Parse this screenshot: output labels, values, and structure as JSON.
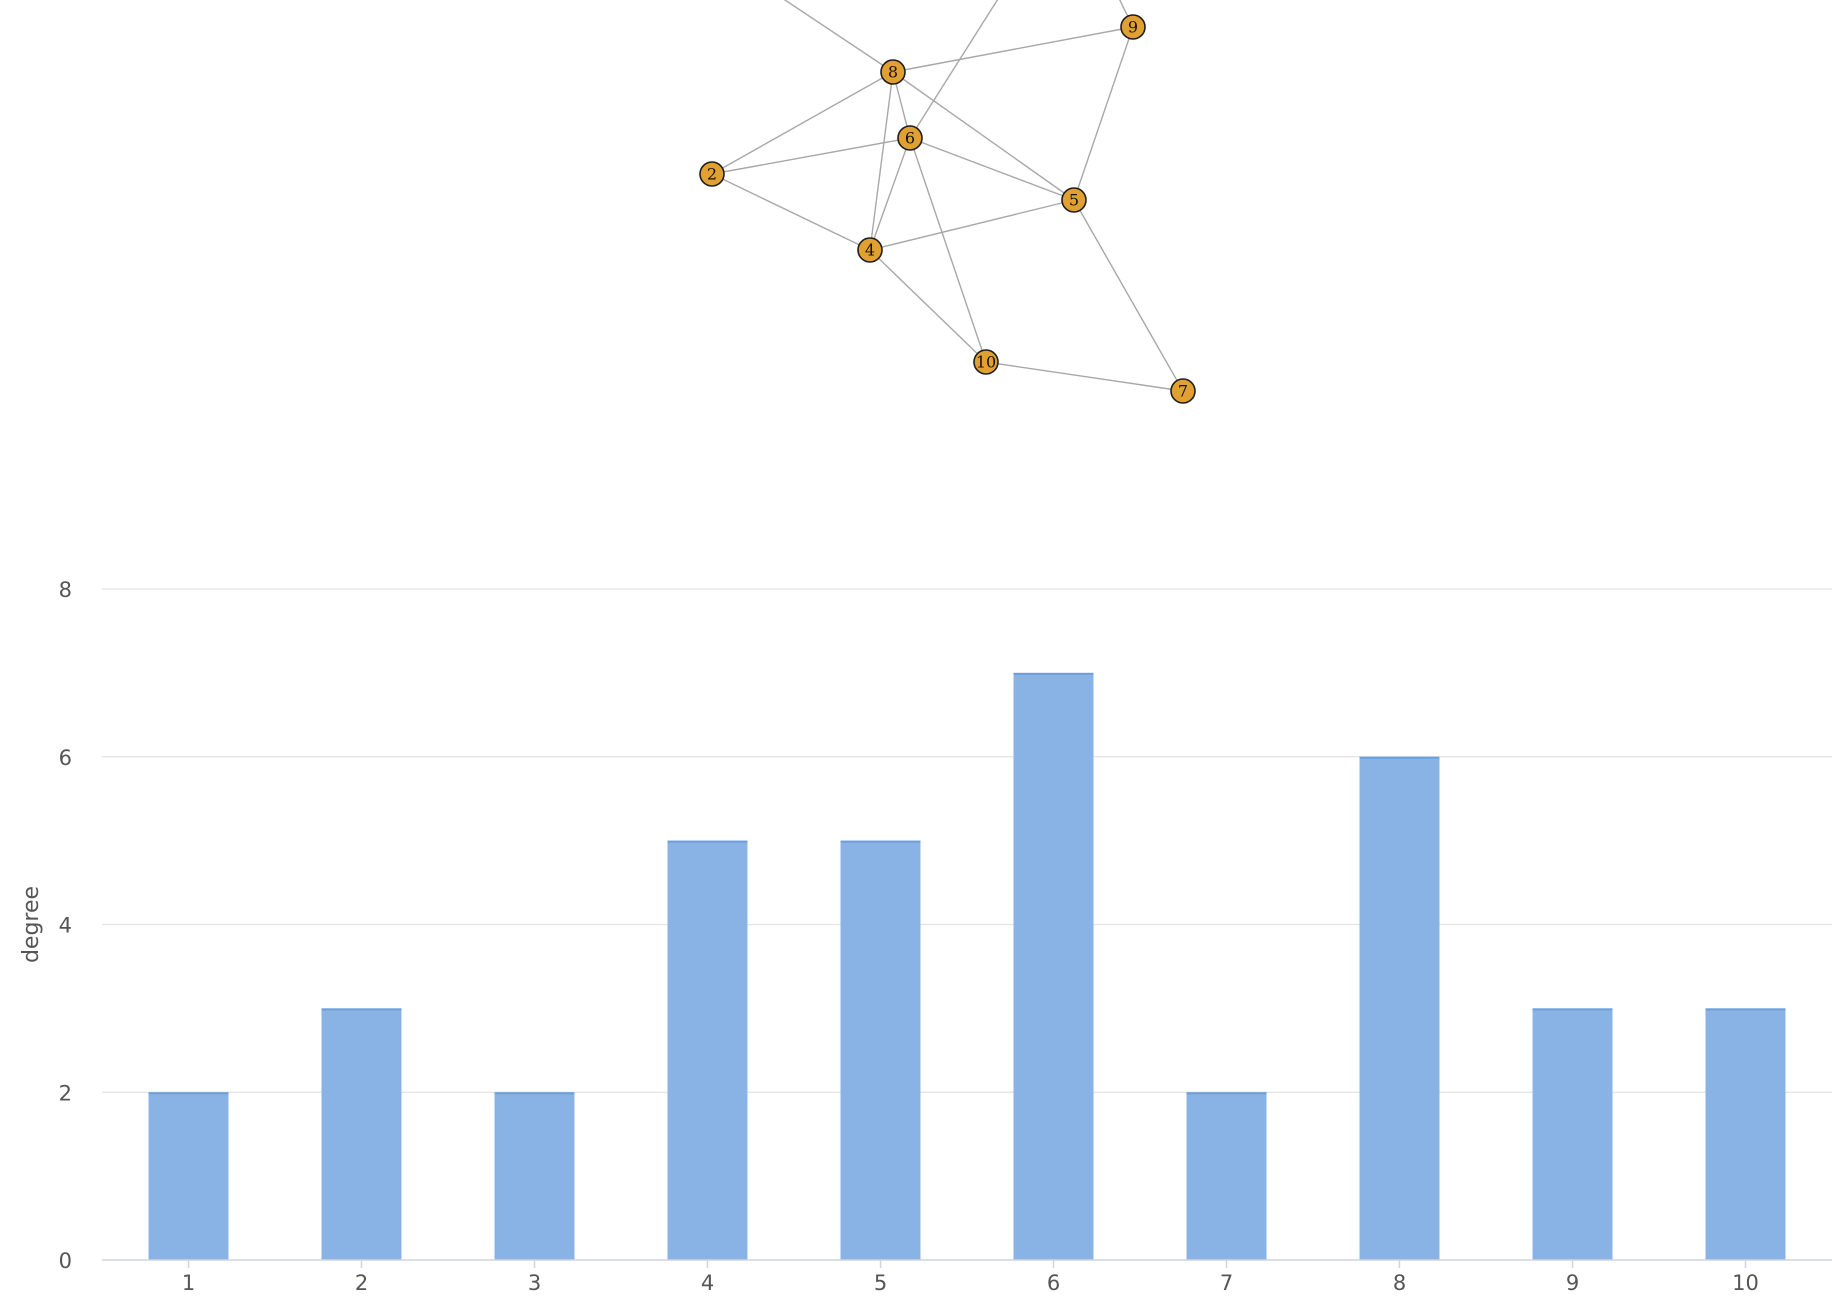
{
  "graph": {
    "nodes": [
      {
        "id": "2",
        "label": "2"
      },
      {
        "id": "4",
        "label": "4"
      },
      {
        "id": "5",
        "label": "5"
      },
      {
        "id": "6",
        "label": "6"
      },
      {
        "id": "7",
        "label": "7"
      },
      {
        "id": "8",
        "label": "8"
      },
      {
        "id": "9",
        "label": "9"
      },
      {
        "id": "10",
        "label": "10"
      }
    ],
    "edges": [
      [
        "8",
        "6"
      ],
      [
        "8",
        "9"
      ],
      [
        "8",
        "2"
      ],
      [
        "8",
        "4"
      ],
      [
        "8",
        "5"
      ],
      [
        "6",
        "2"
      ],
      [
        "6",
        "4"
      ],
      [
        "6",
        "5"
      ],
      [
        "6",
        "10"
      ],
      [
        "2",
        "4"
      ],
      [
        "4",
        "5"
      ],
      [
        "4",
        "10"
      ],
      [
        "9",
        "5"
      ],
      [
        "5",
        "7"
      ],
      [
        "10",
        "7"
      ]
    ],
    "node_color": "#e1a032",
    "edge_color": "#a8a8a8"
  },
  "chart_data": {
    "type": "bar",
    "categories": [
      "1",
      "2",
      "3",
      "4",
      "5",
      "6",
      "7",
      "8",
      "9",
      "10"
    ],
    "values": [
      2,
      3,
      2,
      5,
      5,
      7,
      2,
      6,
      3,
      3
    ],
    "ylabel": "degree",
    "xlabel": "",
    "ylim": [
      0,
      8
    ],
    "yticks": [
      0,
      2,
      4,
      6,
      8
    ],
    "bar_color": "#88b3e4",
    "grid": true
  }
}
